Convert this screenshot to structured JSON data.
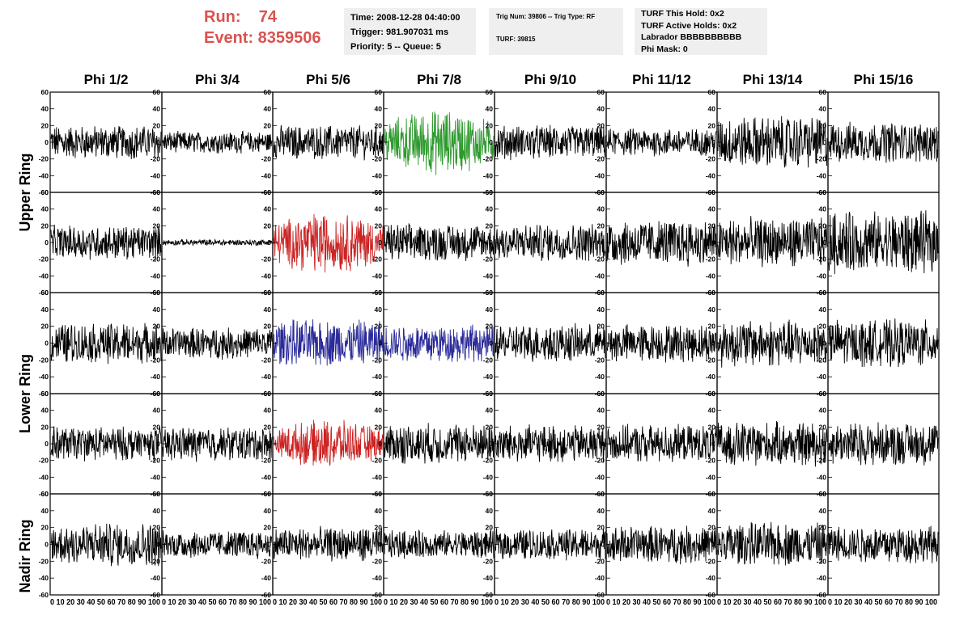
{
  "header": {
    "run_label": "Run:    74",
    "event_label": "Event: 8359506",
    "info1": [
      "Time: 2008-12-28 04:40:00",
      "Trigger: 981.907031 ms",
      "Priority: 5 -- Queue: 5"
    ],
    "info2": [
      "Trig Num: 39806 -- Trig Type: RF",
      "TURF: 39815"
    ],
    "info3": [
      "TURF This Hold: 0x2",
      "TURF Active Holds: 0x2",
      "Labrador BBBBBBBBBB",
      "Phi Mask: 0"
    ]
  },
  "colors": {
    "header_red": "#d9534f",
    "info_bg": "#efefef",
    "trace_default": "#000000",
    "trace_green": "#2e9a2e",
    "trace_red": "#cc2222",
    "trace_blue": "#2a2a9a"
  },
  "chart_data": {
    "type": "line",
    "column_titles": [
      "Phi 1/2",
      "Phi 3/4",
      "Phi 5/6",
      "Phi 7/8",
      "Phi 9/10",
      "Phi 11/12",
      "Phi 13/14",
      "Phi 15/16"
    ],
    "row_group_titles": [
      "Upper Ring",
      "Lower Ring",
      "Nadir Ring"
    ],
    "ylim": [
      -60,
      60
    ],
    "yticks": [
      -60,
      -40,
      -20,
      0,
      20,
      40,
      60
    ],
    "xlim": [
      0,
      100
    ],
    "xtick_text": [
      "0 10 20 30 40 50 60 70 80 90 100",
      "0 10 20 30 40 50 60 70 80 90 100",
      "0 10 20 30 40 50 60 70 80 90 100",
      "0 10 20 30 40 50 60 70 80 90 100",
      "0 10 20 30 40 50 60 70 80 90 100",
      "0 10 20 30 40 50 60 70 80 90 100",
      "0 10 20 30 40 50 60 70 80 90 100",
      "0 10 20 30 40 50 60 70 80 90 100"
    ],
    "samples_per_trace": 260,
    "panels": [
      [
        {
          "amp": 11,
          "color": "trace_default"
        },
        {
          "amp": 7,
          "color": "trace_default"
        },
        {
          "amp": 11,
          "color": "trace_default"
        },
        {
          "amp": 18,
          "color": "trace_green"
        },
        {
          "amp": 11,
          "color": "trace_default"
        },
        {
          "amp": 9,
          "color": "trace_default"
        },
        {
          "amp": 17,
          "color": "trace_default"
        },
        {
          "amp": 13,
          "color": "trace_default"
        }
      ],
      [
        {
          "amp": 11,
          "color": "trace_default"
        },
        {
          "amp": 2,
          "color": "trace_default"
        },
        {
          "amp": 17,
          "color": "trace_red"
        },
        {
          "amp": 12,
          "color": "trace_default"
        },
        {
          "amp": 12,
          "color": "trace_default"
        },
        {
          "amp": 15,
          "color": "trace_default"
        },
        {
          "amp": 16,
          "color": "trace_default"
        },
        {
          "amp": 20,
          "color": "trace_default"
        }
      ],
      [
        {
          "amp": 13,
          "color": "trace_default"
        },
        {
          "amp": 10,
          "color": "trace_default"
        },
        {
          "amp": 15,
          "color": "trace_blue"
        },
        {
          "amp": 12,
          "color": "trace_blue"
        },
        {
          "amp": 12,
          "color": "trace_default"
        },
        {
          "amp": 12,
          "color": "trace_default"
        },
        {
          "amp": 15,
          "color": "trace_default"
        },
        {
          "amp": 15,
          "color": "trace_default"
        }
      ],
      [
        {
          "amp": 11,
          "color": "trace_default"
        },
        {
          "amp": 11,
          "color": "trace_default"
        },
        {
          "amp": 13,
          "color": "trace_red"
        },
        {
          "amp": 13,
          "color": "trace_default"
        },
        {
          "amp": 12,
          "color": "trace_default"
        },
        {
          "amp": 12,
          "color": "trace_default"
        },
        {
          "amp": 14,
          "color": "trace_default"
        },
        {
          "amp": 14,
          "color": "trace_default"
        }
      ],
      [
        {
          "amp": 14,
          "color": "trace_default"
        },
        {
          "amp": 9,
          "color": "trace_default"
        },
        {
          "amp": 11,
          "color": "trace_default"
        },
        {
          "amp": 9,
          "color": "trace_default"
        },
        {
          "amp": 10,
          "color": "trace_default"
        },
        {
          "amp": 12,
          "color": "trace_default"
        },
        {
          "amp": 14,
          "color": "trace_default"
        },
        {
          "amp": 12,
          "color": "trace_default"
        }
      ]
    ]
  }
}
